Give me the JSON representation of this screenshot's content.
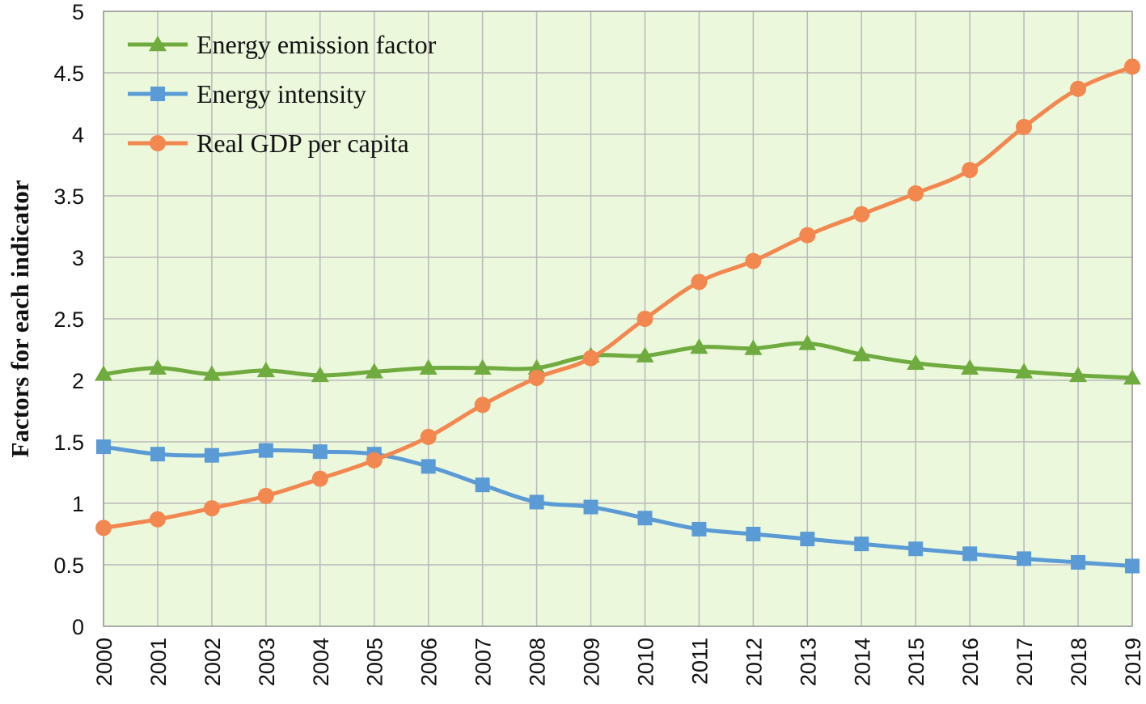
{
  "chart_data": {
    "type": "line",
    "title": "",
    "xlabel": "",
    "ylabel": "Factors for each indicator",
    "ylim": [
      0,
      5
    ],
    "yticks": [
      "0",
      "0.5",
      "1",
      "1.5",
      "2",
      "2.5",
      "3",
      "3.5",
      "4",
      "4.5",
      "5"
    ],
    "grid": true,
    "legend_position": "top-left",
    "background": "#ebf8dc",
    "categories": [
      "2000",
      "2001",
      "2002",
      "2003",
      "2004",
      "2005",
      "2006",
      "2007",
      "2008",
      "2009",
      "2010",
      "2011",
      "2012",
      "2013",
      "2014",
      "2015",
      "2016",
      "2017",
      "2018",
      "2019"
    ],
    "series": [
      {
        "name": "Energy emission factor",
        "marker": "triangle",
        "color": "#6fab3e",
        "values": [
          2.05,
          2.1,
          2.05,
          2.08,
          2.04,
          2.07,
          2.1,
          2.1,
          2.1,
          2.2,
          2.2,
          2.27,
          2.26,
          2.3,
          2.21,
          2.14,
          2.1,
          2.07,
          2.04,
          2.02
        ]
      },
      {
        "name": "Energy intensity",
        "marker": "square",
        "color": "#5b9bd5",
        "values": [
          1.46,
          1.4,
          1.39,
          1.43,
          1.42,
          1.4,
          1.3,
          1.15,
          1.01,
          0.97,
          0.88,
          0.79,
          0.75,
          0.71,
          0.67,
          0.63,
          0.59,
          0.55,
          0.52,
          0.49
        ]
      },
      {
        "name": "Real GDP per capita",
        "marker": "circle",
        "color": "#f2874f",
        "values": [
          0.8,
          0.87,
          0.96,
          1.06,
          1.2,
          1.35,
          1.54,
          1.8,
          2.02,
          2.18,
          2.5,
          2.8,
          2.97,
          3.18,
          3.35,
          3.52,
          3.71,
          4.06,
          4.37,
          4.55
        ]
      }
    ]
  }
}
